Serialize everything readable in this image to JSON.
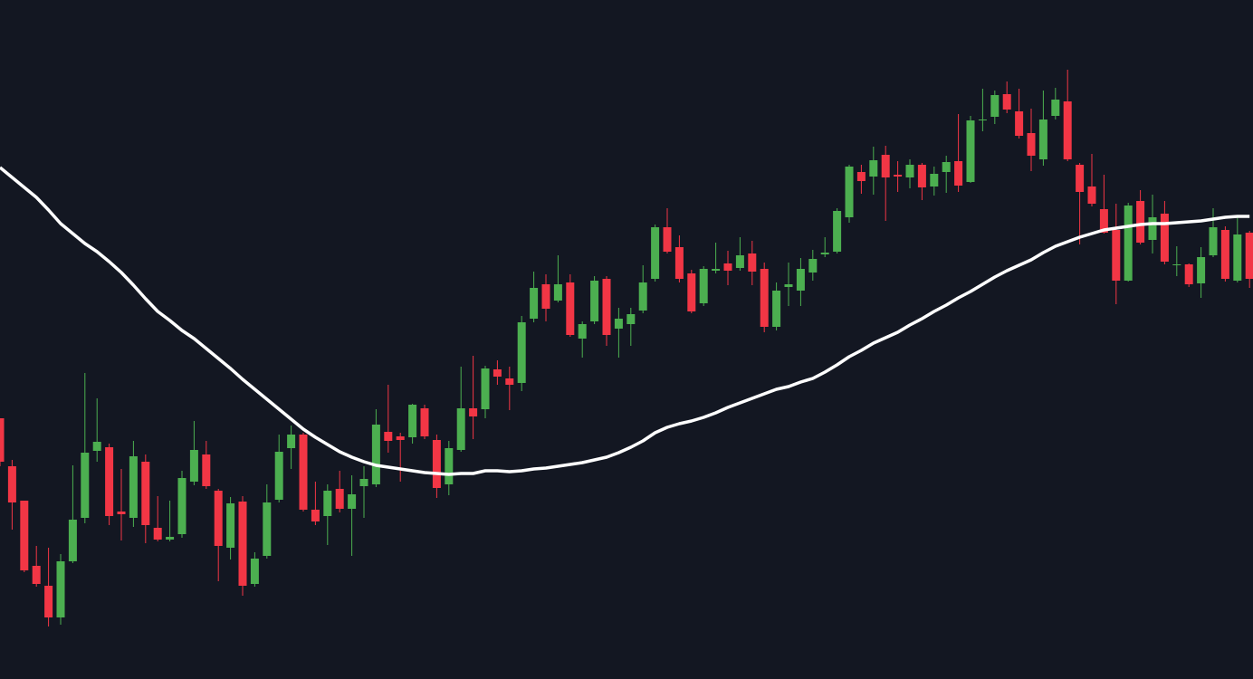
{
  "chart_data": {
    "type": "candlestick",
    "categories": [
      null,
      null,
      null,
      null,
      null,
      null,
      null,
      null,
      null,
      null,
      null,
      null,
      null,
      null,
      null,
      null,
      null,
      null,
      null,
      null,
      null,
      null,
      null,
      null,
      null,
      null,
      null,
      null,
      null,
      null,
      null,
      null,
      null,
      null,
      null,
      null,
      null,
      null,
      null,
      null,
      null,
      null,
      null,
      null,
      null,
      null,
      null,
      null,
      null,
      null,
      null,
      null,
      null,
      null,
      null,
      null,
      null,
      null,
      null,
      null,
      null,
      null,
      null,
      null,
      null,
      null,
      null,
      null,
      null,
      null,
      null,
      null,
      null,
      null,
      null,
      null,
      null,
      null,
      null,
      null,
      null,
      null,
      null,
      null,
      null,
      null,
      null,
      null,
      null,
      null,
      null,
      null,
      null,
      null,
      null,
      null,
      null,
      null,
      null,
      null,
      null,
      null,
      null,
      null
    ],
    "open": [
      288,
      235,
      197,
      125,
      103,
      68,
      130,
      178,
      252,
      256,
      185,
      178,
      240,
      167,
      154,
      160,
      218,
      248,
      208,
      145,
      196,
      105,
      136,
      198,
      255,
      270,
      187,
      180,
      210,
      188,
      213,
      215,
      273,
      268,
      267,
      299,
      264,
      215,
      253,
      299,
      298,
      342,
      332,
      327,
      398,
      436,
      418,
      438,
      376,
      395,
      442,
      387,
      392,
      407,
      442,
      499,
      477,
      448,
      415,
      451,
      459,
      454,
      470,
      453,
      389,
      433,
      429,
      449,
      469,
      472,
      510,
      560,
      555,
      579,
      557,
      554,
      568,
      544,
      560,
      572,
      549,
      618,
      621,
      646,
      627,
      603,
      574,
      622,
      638,
      568,
      544,
      519,
      496,
      440,
      528,
      485,
      514,
      458,
      458,
      437,
      468,
      496,
      440,
      493
    ],
    "high": [
      288,
      242,
      197,
      147,
      145,
      138,
      236,
      338,
      310,
      260,
      232,
      263,
      248,
      202,
      197,
      230,
      285,
      263,
      210,
      201,
      202,
      140,
      215,
      270,
      280,
      272,
      218,
      215,
      230,
      225,
      235,
      298,
      325,
      272,
      304,
      303,
      270,
      263,
      345,
      357,
      346,
      352,
      345,
      401,
      450,
      447,
      468,
      447,
      395,
      445,
      445,
      410,
      410,
      457,
      502,
      520,
      490,
      452,
      456,
      482,
      473,
      488,
      484,
      460,
      438,
      460,
      465,
      474,
      488,
      520,
      568,
      568,
      588,
      589,
      572,
      574,
      570,
      566,
      578,
      624,
      622,
      652,
      650,
      660,
      652,
      630,
      650,
      653,
      673,
      570,
      580,
      557,
      525,
      526,
      540,
      535,
      528,
      478,
      459,
      477,
      520,
      500,
      510,
      495
    ],
    "low": [
      235,
      165,
      118,
      102,
      58,
      60,
      128,
      172,
      240,
      170,
      153,
      168,
      150,
      152,
      152,
      156,
      214,
      210,
      108,
      132,
      92,
      102,
      133,
      195,
      232,
      185,
      170,
      148,
      184,
      136,
      178,
      212,
      250,
      218,
      260,
      265,
      200,
      203,
      251,
      265,
      288,
      325,
      297,
      318,
      394,
      395,
      416,
      378,
      355,
      392,
      368,
      355,
      368,
      404,
      439,
      470,
      438,
      404,
      412,
      448,
      435,
      451,
      435,
      383,
      385,
      412,
      412,
      440,
      466,
      470,
      504,
      536,
      535,
      506,
      538,
      542,
      529,
      534,
      537,
      538,
      548,
      605,
      613,
      625,
      597,
      561,
      567,
      618,
      572,
      480,
      522,
      492,
      414,
      439,
      480,
      470,
      458,
      445,
      433,
      421,
      466,
      439,
      438,
      432
    ],
    "close": [
      240,
      195,
      120,
      105,
      68,
      130,
      176,
      250,
      262,
      180,
      182,
      246,
      170,
      154,
      157,
      222,
      253,
      213,
      147,
      194,
      103,
      133,
      195,
      251,
      270,
      187,
      174,
      208,
      188,
      204,
      221,
      281,
      263,
      264,
      303,
      268,
      211,
      255,
      299,
      290,
      343,
      334,
      325,
      394,
      432,
      409,
      436,
      380,
      392,
      440,
      380,
      398,
      403,
      438,
      499,
      472,
      442,
      406,
      453,
      453,
      451,
      468,
      450,
      389,
      429,
      436,
      453,
      464,
      471,
      517,
      566,
      550,
      573,
      554,
      555,
      568,
      543,
      558,
      571,
      545,
      617,
      618,
      645,
      629,
      600,
      578,
      618,
      640,
      574,
      538,
      525,
      493,
      440,
      523,
      482,
      510,
      461,
      458,
      436,
      466,
      499,
      442,
      491,
      442
    ],
    "up_color": "#4caf50",
    "down_color": "#f23645",
    "line": {
      "color": "#ffffff",
      "values": [
        565,
        554,
        543,
        532,
        518,
        503,
        492,
        481,
        472,
        461,
        449,
        435,
        420,
        406,
        396,
        385,
        376,
        365,
        354,
        343,
        331,
        320,
        309,
        298,
        287,
        276,
        267,
        259,
        251,
        245,
        240,
        236,
        234,
        232,
        230,
        228,
        227,
        226,
        227,
        227,
        230,
        230,
        229,
        230,
        232,
        233,
        235,
        237,
        239,
        242,
        245,
        250,
        256,
        263,
        272,
        278,
        282,
        285,
        289,
        294,
        300,
        305,
        310,
        315,
        320,
        323,
        328,
        332,
        339,
        347,
        356,
        363,
        371,
        377,
        383,
        391,
        398,
        406,
        413,
        421,
        428,
        436,
        444,
        451,
        457,
        463,
        471,
        478,
        483,
        488,
        492,
        496,
        498,
        500,
        502,
        503,
        503,
        504,
        505,
        506,
        508,
        510,
        511,
        511
      ]
    },
    "ylim": [
      0,
      750
    ]
  }
}
